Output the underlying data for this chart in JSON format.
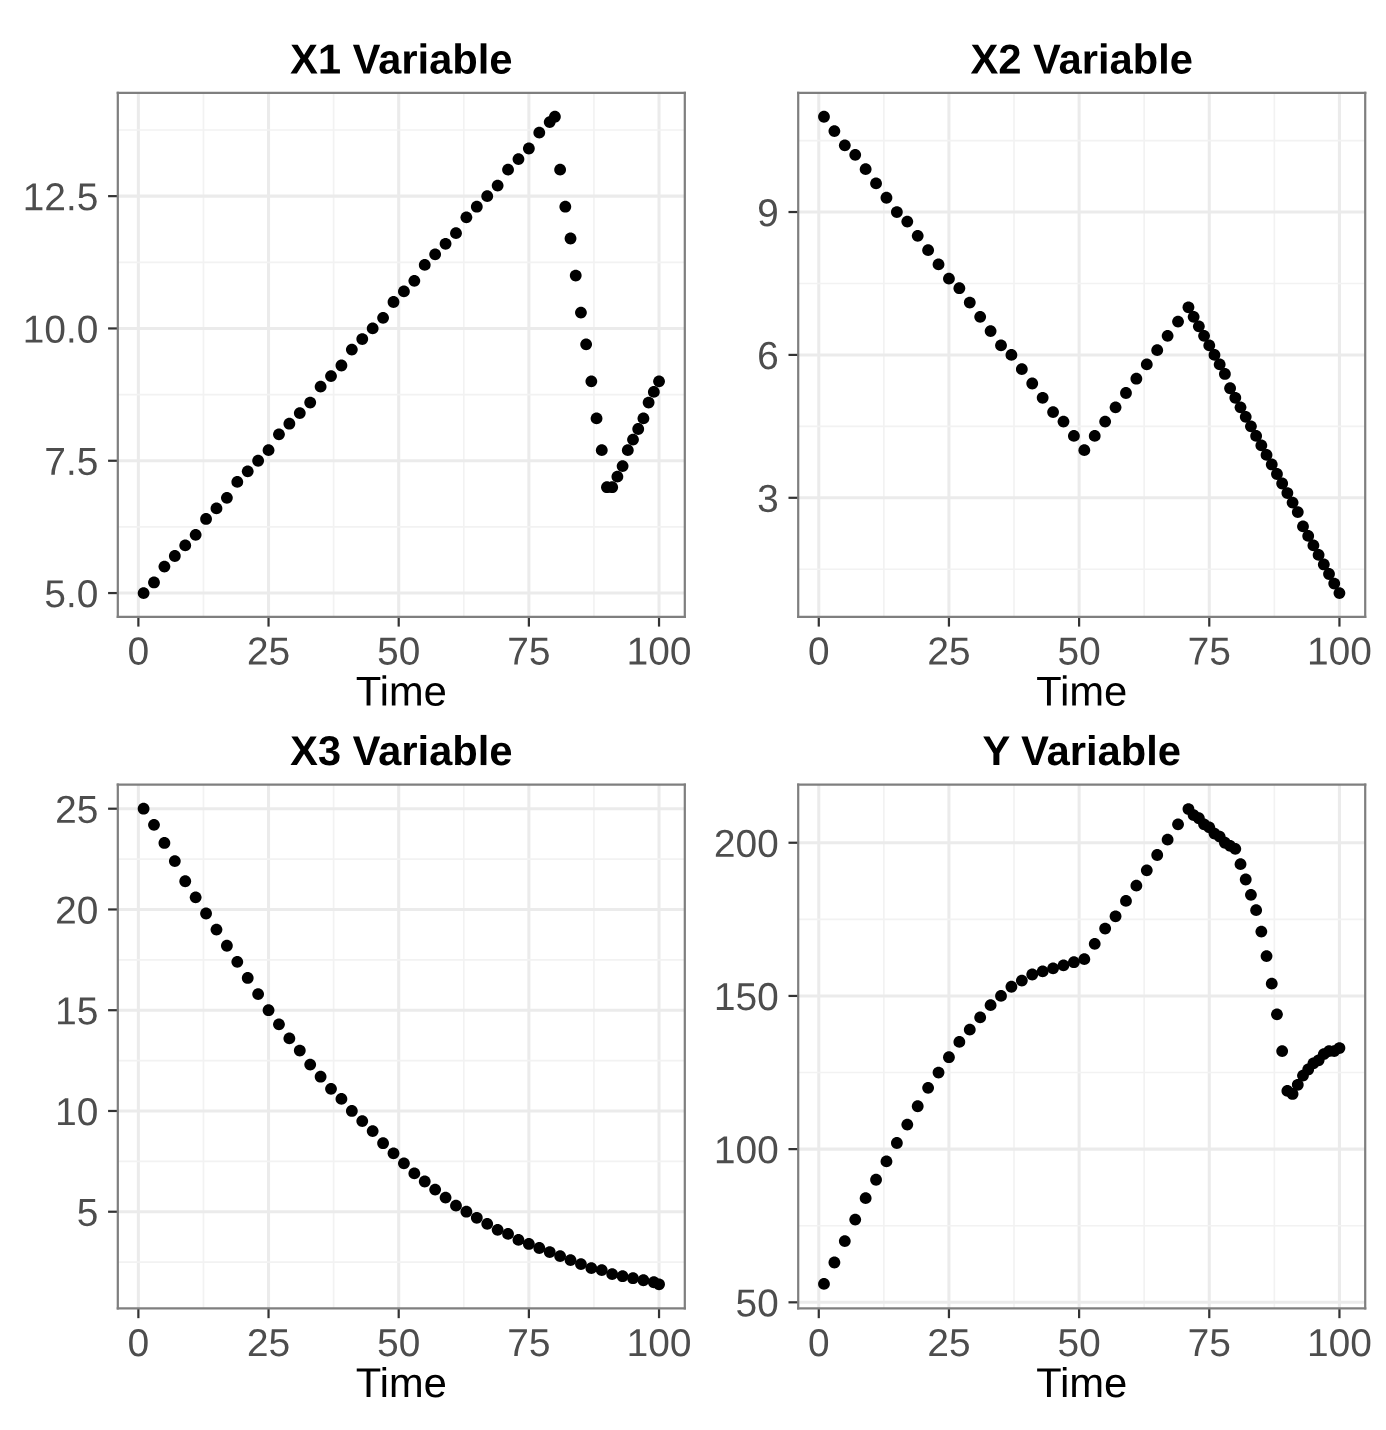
{
  "chart_data": [
    {
      "type": "scatter",
      "title": "X1 Variable",
      "xlabel": "Time",
      "color": "#000000",
      "marker": "circle",
      "grid": true,
      "x": [
        1,
        3,
        5,
        7,
        9,
        11,
        13,
        15,
        17,
        19,
        21,
        23,
        25,
        27,
        29,
        31,
        33,
        35,
        37,
        39,
        41,
        43,
        45,
        47,
        49,
        51,
        53,
        55,
        57,
        59,
        61,
        63,
        65,
        67,
        69,
        71,
        73,
        75,
        77,
        79,
        80,
        81,
        82,
        83,
        84,
        85,
        86,
        87,
        88,
        89,
        90,
        91,
        92,
        93,
        94,
        95,
        96,
        97,
        98,
        99,
        100
      ],
      "values": [
        5.0,
        5.2,
        5.5,
        5.7,
        5.9,
        6.1,
        6.4,
        6.6,
        6.8,
        7.1,
        7.3,
        7.5,
        7.7,
        8.0,
        8.2,
        8.4,
        8.6,
        8.9,
        9.1,
        9.3,
        9.6,
        9.8,
        10.0,
        10.2,
        10.5,
        10.7,
        10.9,
        11.2,
        11.4,
        11.6,
        11.8,
        12.1,
        12.3,
        12.5,
        12.7,
        13.0,
        13.2,
        13.4,
        13.7,
        13.9,
        14.0,
        13.0,
        12.3,
        11.7,
        11.0,
        10.3,
        9.7,
        9.0,
        8.3,
        7.7,
        7.0,
        7.0,
        7.2,
        7.4,
        7.7,
        7.9,
        8.1,
        8.3,
        8.6,
        8.8,
        9.0
      ],
      "xlim": [
        -3.95,
        104.95
      ],
      "xticks": [
        0,
        25,
        50,
        75,
        100
      ],
      "ylim": [
        4.55,
        14.45
      ],
      "yticks": [
        {
          "value": 5,
          "label": "5.0"
        },
        7.5,
        {
          "value": 10,
          "label": "10.0"
        },
        12.5
      ]
    },
    {
      "type": "scatter",
      "title": "X2 Variable",
      "xlabel": "Time",
      "color": "#000000",
      "marker": "circle",
      "grid": true,
      "x": [
        1,
        3,
        5,
        7,
        9,
        11,
        13,
        15,
        17,
        19,
        21,
        23,
        25,
        27,
        29,
        31,
        33,
        35,
        37,
        39,
        41,
        43,
        45,
        47,
        49,
        51,
        53,
        55,
        57,
        59,
        61,
        63,
        65,
        67,
        69,
        71,
        72,
        73,
        74,
        75,
        76,
        77,
        78,
        79,
        80,
        81,
        82,
        83,
        84,
        85,
        86,
        87,
        88,
        89,
        90,
        91,
        92,
        93,
        94,
        95,
        96,
        97,
        98,
        99,
        100
      ],
      "values": [
        11.0,
        10.7,
        10.4,
        10.2,
        9.9,
        9.6,
        9.3,
        9.0,
        8.8,
        8.5,
        8.2,
        7.9,
        7.6,
        7.4,
        7.1,
        6.8,
        6.5,
        6.2,
        6.0,
        5.7,
        5.4,
        5.1,
        4.8,
        4.6,
        4.3,
        4.0,
        4.3,
        4.6,
        4.9,
        5.2,
        5.5,
        5.8,
        6.1,
        6.4,
        6.7,
        7.0,
        6.8,
        6.6,
        6.4,
        6.2,
        6.0,
        5.8,
        5.6,
        5.3,
        5.1,
        4.9,
        4.7,
        4.5,
        4.3,
        4.1,
        3.9,
        3.7,
        3.5,
        3.3,
        3.1,
        2.9,
        2.7,
        2.4,
        2.2,
        2.0,
        1.8,
        1.6,
        1.4,
        1.2,
        1.0
      ],
      "xlim": [
        -3.95,
        104.95
      ],
      "xticks": [
        0,
        25,
        50,
        75,
        100
      ],
      "ylim": [
        0.5,
        11.5
      ],
      "yticks": [
        3,
        6,
        9
      ]
    },
    {
      "type": "scatter",
      "title": "X3 Variable",
      "xlabel": "Time",
      "color": "#000000",
      "marker": "circle",
      "grid": true,
      "x": [
        1,
        3,
        5,
        7,
        9,
        11,
        13,
        15,
        17,
        19,
        21,
        23,
        25,
        27,
        29,
        31,
        33,
        35,
        37,
        39,
        41,
        43,
        45,
        47,
        49,
        51,
        53,
        55,
        57,
        59,
        61,
        63,
        65,
        67,
        69,
        71,
        73,
        75,
        77,
        79,
        81,
        83,
        85,
        87,
        89,
        91,
        93,
        95,
        97,
        99,
        100
      ],
      "values": [
        25.0,
        24.2,
        23.3,
        22.4,
        21.4,
        20.6,
        19.8,
        19.0,
        18.2,
        17.4,
        16.6,
        15.8,
        15.0,
        14.3,
        13.6,
        13.0,
        12.3,
        11.7,
        11.1,
        10.6,
        10.0,
        9.5,
        9.0,
        8.4,
        7.9,
        7.4,
        6.9,
        6.5,
        6.1,
        5.7,
        5.3,
        5.0,
        4.7,
        4.4,
        4.1,
        3.9,
        3.6,
        3.4,
        3.2,
        3.0,
        2.8,
        2.6,
        2.4,
        2.2,
        2.1,
        1.9,
        1.8,
        1.7,
        1.6,
        1.5,
        1.4
      ],
      "xlim": [
        -3.95,
        104.95
      ],
      "xticks": [
        0,
        25,
        50,
        75,
        100
      ],
      "ylim": [
        0.2,
        26.2
      ],
      "yticks": [
        5,
        10,
        15,
        20,
        25
      ]
    },
    {
      "type": "scatter",
      "title": "Y Variable",
      "xlabel": "Time",
      "color": "#000000",
      "marker": "circle",
      "grid": true,
      "x": [
        1,
        3,
        5,
        7,
        9,
        11,
        13,
        15,
        17,
        19,
        21,
        23,
        25,
        27,
        29,
        31,
        33,
        35,
        37,
        39,
        41,
        43,
        45,
        47,
        49,
        51,
        53,
        55,
        57,
        59,
        61,
        63,
        65,
        67,
        69,
        71,
        72,
        73,
        74,
        75,
        76,
        77,
        78,
        79,
        80,
        81,
        82,
        83,
        84,
        85,
        86,
        87,
        88,
        89,
        90,
        91,
        92,
        93,
        94,
        95,
        96,
        97,
        98,
        99,
        100
      ],
      "values": [
        56,
        63,
        70,
        77,
        84,
        90,
        96,
        102,
        108,
        114,
        120,
        125,
        130,
        135,
        139,
        143,
        147,
        150,
        153,
        155,
        157,
        158,
        159,
        160,
        161,
        162,
        167,
        172,
        176,
        181,
        186,
        191,
        196,
        201,
        206,
        211,
        209,
        208,
        206,
        205,
        203,
        202,
        200,
        199,
        198,
        193,
        188,
        183,
        178,
        171,
        163,
        154,
        144,
        132,
        119,
        118,
        121,
        124,
        126,
        128,
        129,
        131,
        132,
        132,
        133
      ],
      "xlim": [
        -3.95,
        104.95
      ],
      "xticks": [
        0,
        25,
        50,
        75,
        100
      ],
      "ylim": [
        48,
        219
      ],
      "yticks": [
        50,
        100,
        150,
        200
      ]
    }
  ]
}
